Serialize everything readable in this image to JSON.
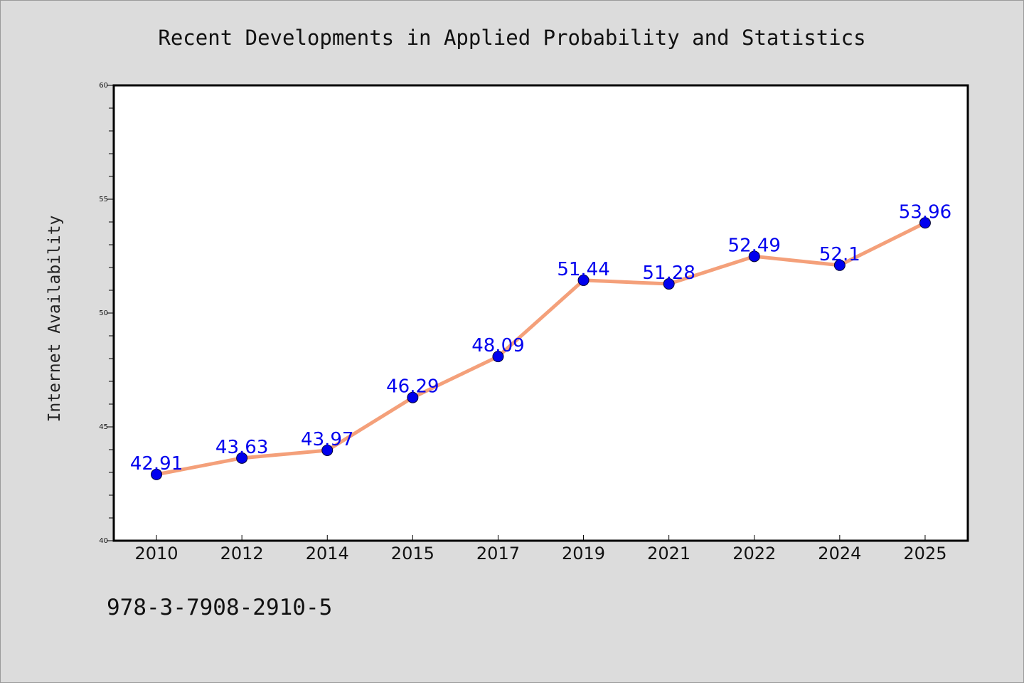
{
  "chart_data": {
    "type": "line",
    "title": "Recent Developments in Applied Probability and Statistics",
    "xlabel": "",
    "ylabel": "Internet Availability",
    "categories": [
      "2010",
      "2012",
      "2014",
      "2015",
      "2017",
      "2019",
      "2021",
      "2022",
      "2024",
      "2025"
    ],
    "series": [
      {
        "values": [
          42.91,
          43.63,
          43.97,
          46.29,
          48.09,
          51.44,
          51.28,
          52.49,
          52.1,
          53.96
        ],
        "data_labels": [
          "42.91",
          "43.63",
          "43.97",
          "46.29",
          "48.09",
          "51.44",
          "51.28",
          "52.49",
          "52.1",
          "53.96"
        ]
      }
    ],
    "ylim": [
      40,
      60
    ],
    "y_ticks": [
      "40",
      "45",
      "50",
      "55",
      "60"
    ],
    "grid": false,
    "line_color": "#f4a07a",
    "marker_color": "#0000ee",
    "label_color": "#0000ee",
    "plot_background": "#ffffff",
    "page_background": "#dcdcdc"
  },
  "annotation": "978-3-7908-2910-5"
}
